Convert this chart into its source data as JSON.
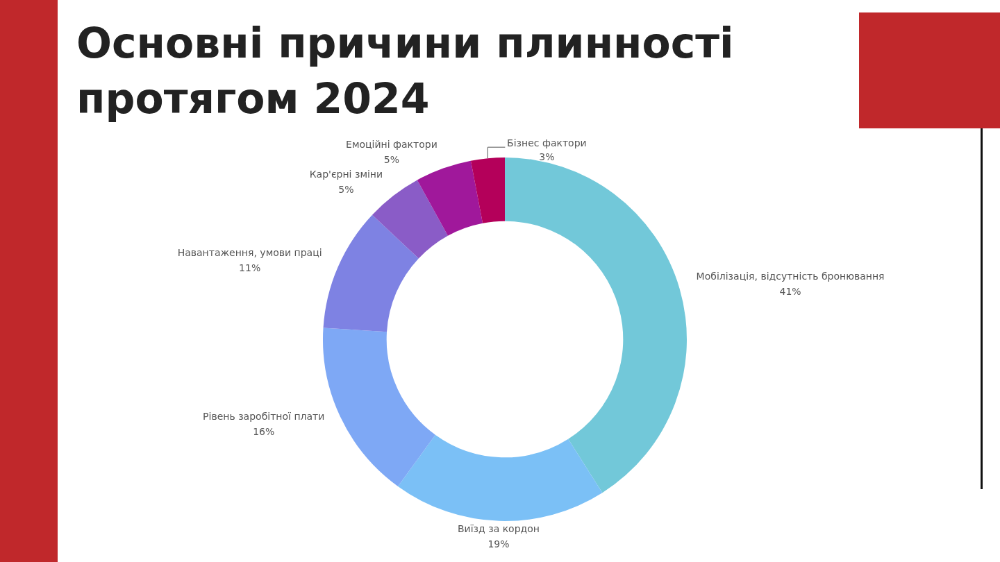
{
  "chart_data": {
    "type": "donut",
    "title": "Основні причини плинності протягом 2024",
    "categories": [
      "Мобілізація, відсутність бронювання",
      "Виїзд за кордон",
      "Рівень заробітної плати",
      "Навантаження, умови праці",
      "Кар'єрні зміни",
      "Емоційні фактори",
      "Бізнес фактори"
    ],
    "values": [
      41,
      19,
      16,
      11,
      5,
      5,
      3
    ],
    "value_labels": [
      "41%",
      "19%",
      "16%",
      "11%",
      "5%",
      "5%",
      "3%"
    ],
    "colors": [
      "#72c8d9",
      "#7bc0f6",
      "#7ea8f5",
      "#7e82e3",
      "#8a5cc7",
      "#a0189b",
      "#b4005a"
    ],
    "legend": false
  }
}
